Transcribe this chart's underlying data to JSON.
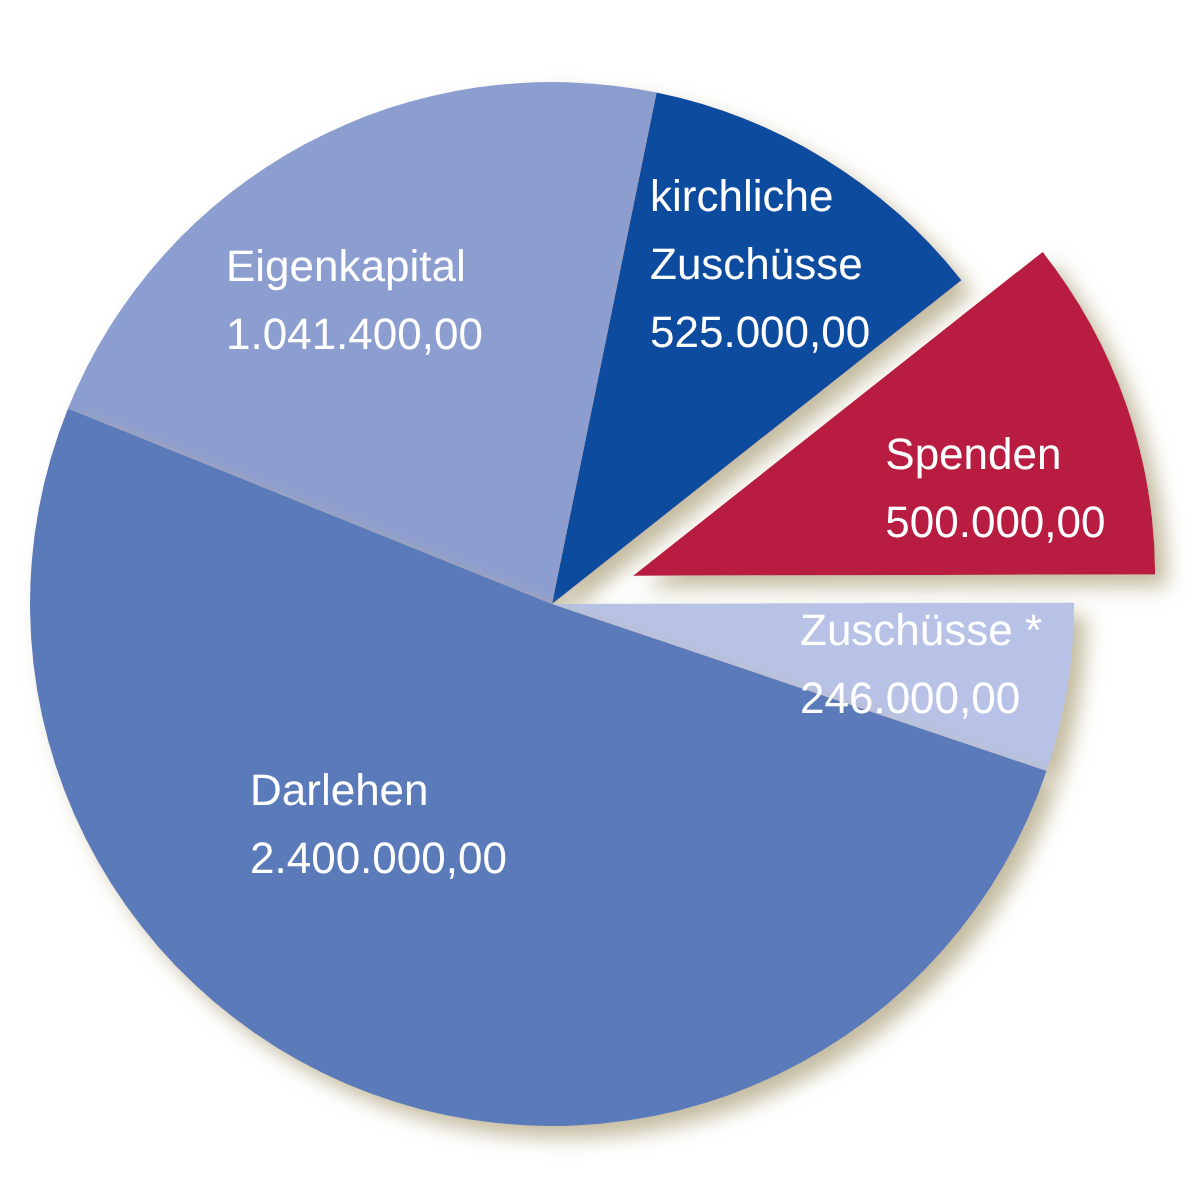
{
  "chart_data": {
    "type": "pie",
    "categories": [
      "Eigenkapital",
      "kirchliche Zuschüsse",
      "Spenden",
      "Zuschüsse *",
      "Darlehen"
    ],
    "values": [
      1041400,
      525000,
      500000,
      246000,
      2400000
    ],
    "value_labels": [
      "1.041.400,00",
      "525.000,00",
      "500.000,00",
      "246.000,00",
      "2.400.000,00"
    ],
    "colors": [
      "#8c9dd0",
      "#0a4c9e",
      "#b81f40",
      "#b8c2e6",
      "#5a7aba"
    ]
  }
}
